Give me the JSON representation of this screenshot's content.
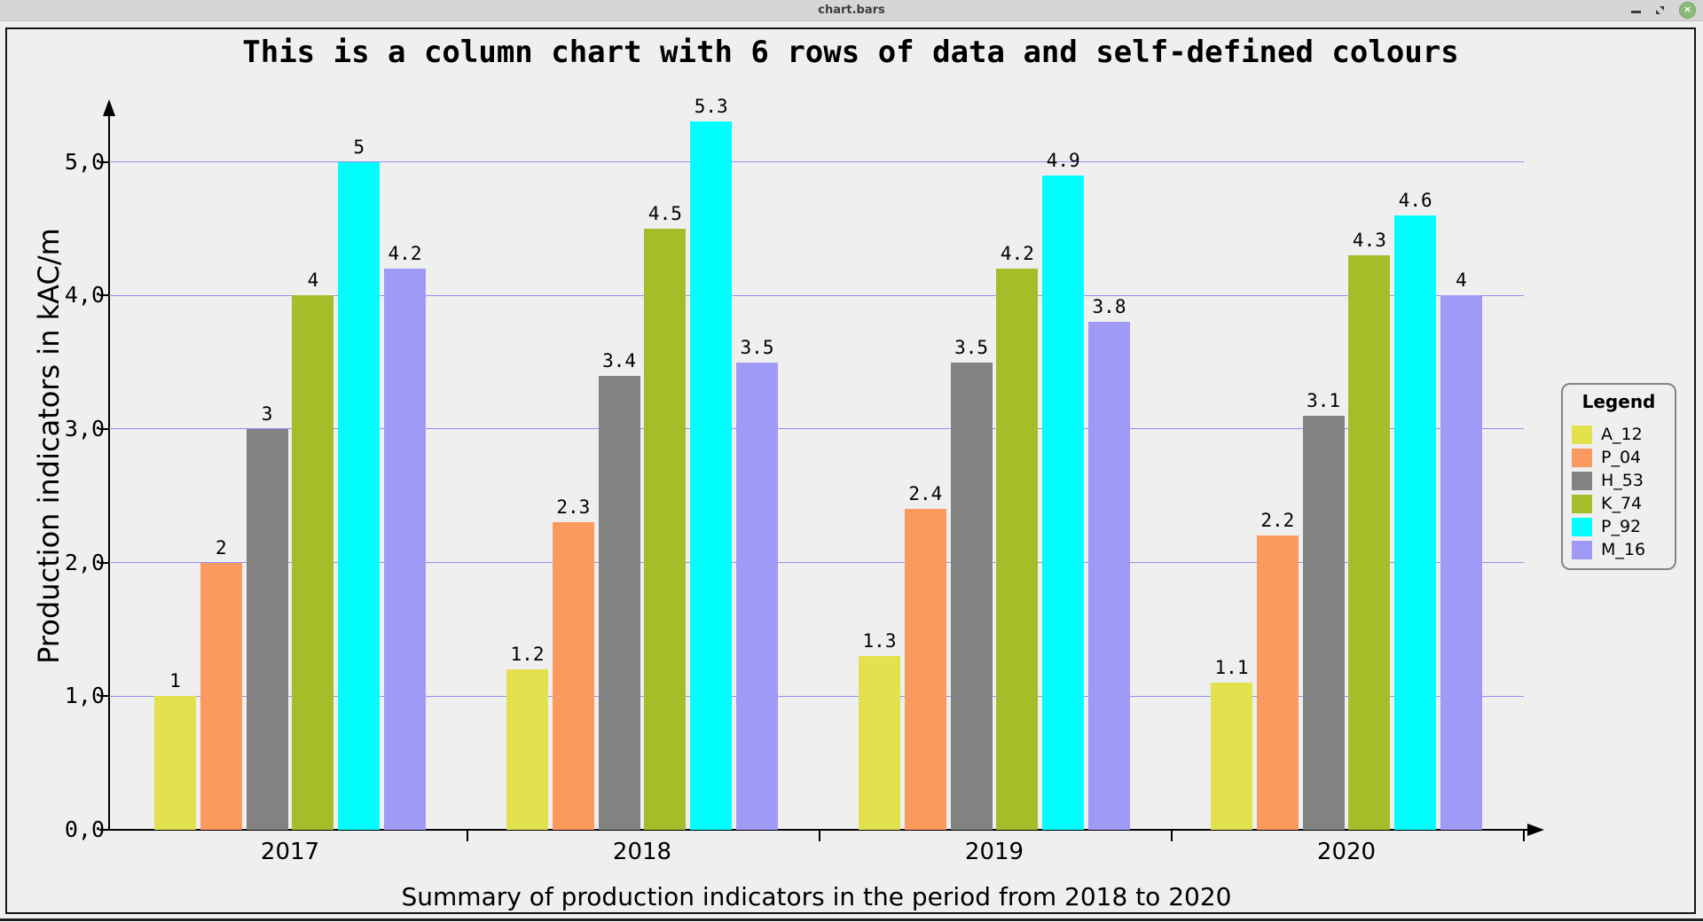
{
  "window": {
    "title": "chart.bars",
    "controls": {
      "minimize_icon": "minimize",
      "maximize_icon": "maximize-restore",
      "close_icon": "×"
    }
  },
  "chart_data": {
    "type": "bar",
    "title": "This is a column chart with 6 rows of data and self-defined colours",
    "xlabel": "Summary of production indicators in the period from 2018 to 2020",
    "ylabel": "Production indicators in kAC/m",
    "categories": [
      "2017",
      "2018",
      "2019",
      "2020"
    ],
    "series": [
      {
        "name": "A_12",
        "color": "#e2e24e",
        "values": [
          1,
          1.2,
          1.3,
          1.1
        ]
      },
      {
        "name": "P_04",
        "color": "#fa9a5e",
        "values": [
          2,
          2.3,
          2.4,
          2.2
        ]
      },
      {
        "name": "H_53",
        "color": "#828282",
        "values": [
          3,
          3.4,
          3.5,
          3.1
        ]
      },
      {
        "name": "K_74",
        "color": "#a6bd29",
        "values": [
          4,
          4.5,
          4.2,
          4.3
        ]
      },
      {
        "name": "P_92",
        "color": "#00ffff",
        "values": [
          5,
          5.3,
          4.9,
          4.6
        ]
      },
      {
        "name": "M_16",
        "color": "#9e9af5",
        "values": [
          4.2,
          3.5,
          3.8,
          4
        ]
      }
    ],
    "y_ticks": [
      "0,0",
      "1,0",
      "2,0",
      "3,0",
      "4,0",
      "5,0"
    ],
    "ylim": [
      0,
      5.5
    ],
    "grid": "horizontal",
    "gridline_color": "#8f8fee",
    "legend_title": "Legend",
    "legend_position": "right"
  }
}
